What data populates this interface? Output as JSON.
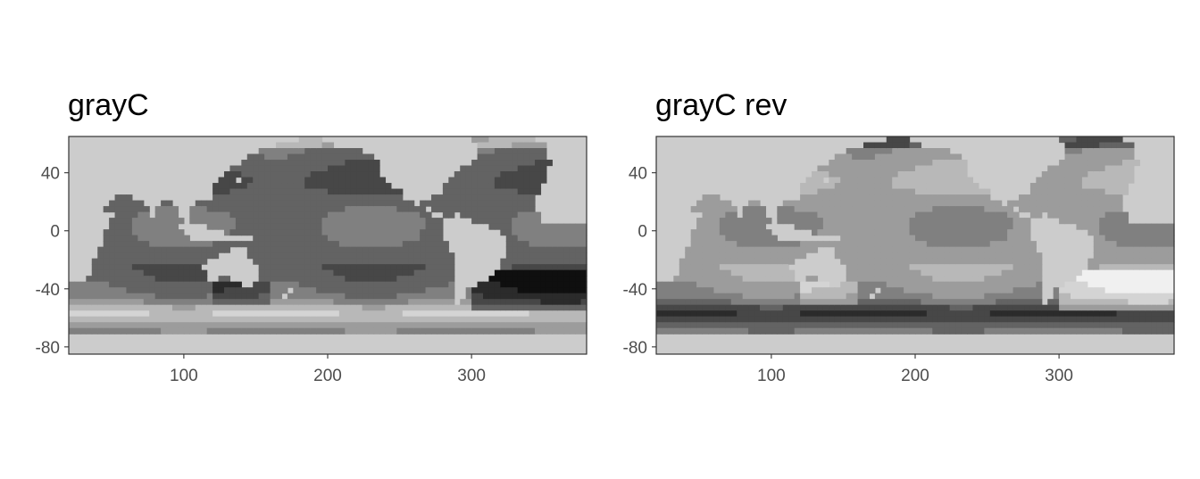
{
  "chart_data": [
    {
      "type": "heatmap",
      "title": "grayC",
      "colormap": "grayC",
      "land_color": "#cccccc",
      "x_ticks": [
        100,
        200,
        300
      ],
      "y_ticks": [
        40,
        0,
        -40,
        -80
      ],
      "xlim": [
        20,
        380
      ],
      "ylim": [
        -85,
        65
      ],
      "grid": false
    },
    {
      "type": "heatmap",
      "title": "grayC rev",
      "colormap": "grayC reversed",
      "land_color": "#cccccc",
      "x_ticks": [
        100,
        200,
        300
      ],
      "y_ticks": [
        40,
        0,
        -40,
        -80
      ],
      "xlim": [
        20,
        380
      ],
      "ylim": [
        -85,
        65
      ],
      "grid": false
    }
  ]
}
